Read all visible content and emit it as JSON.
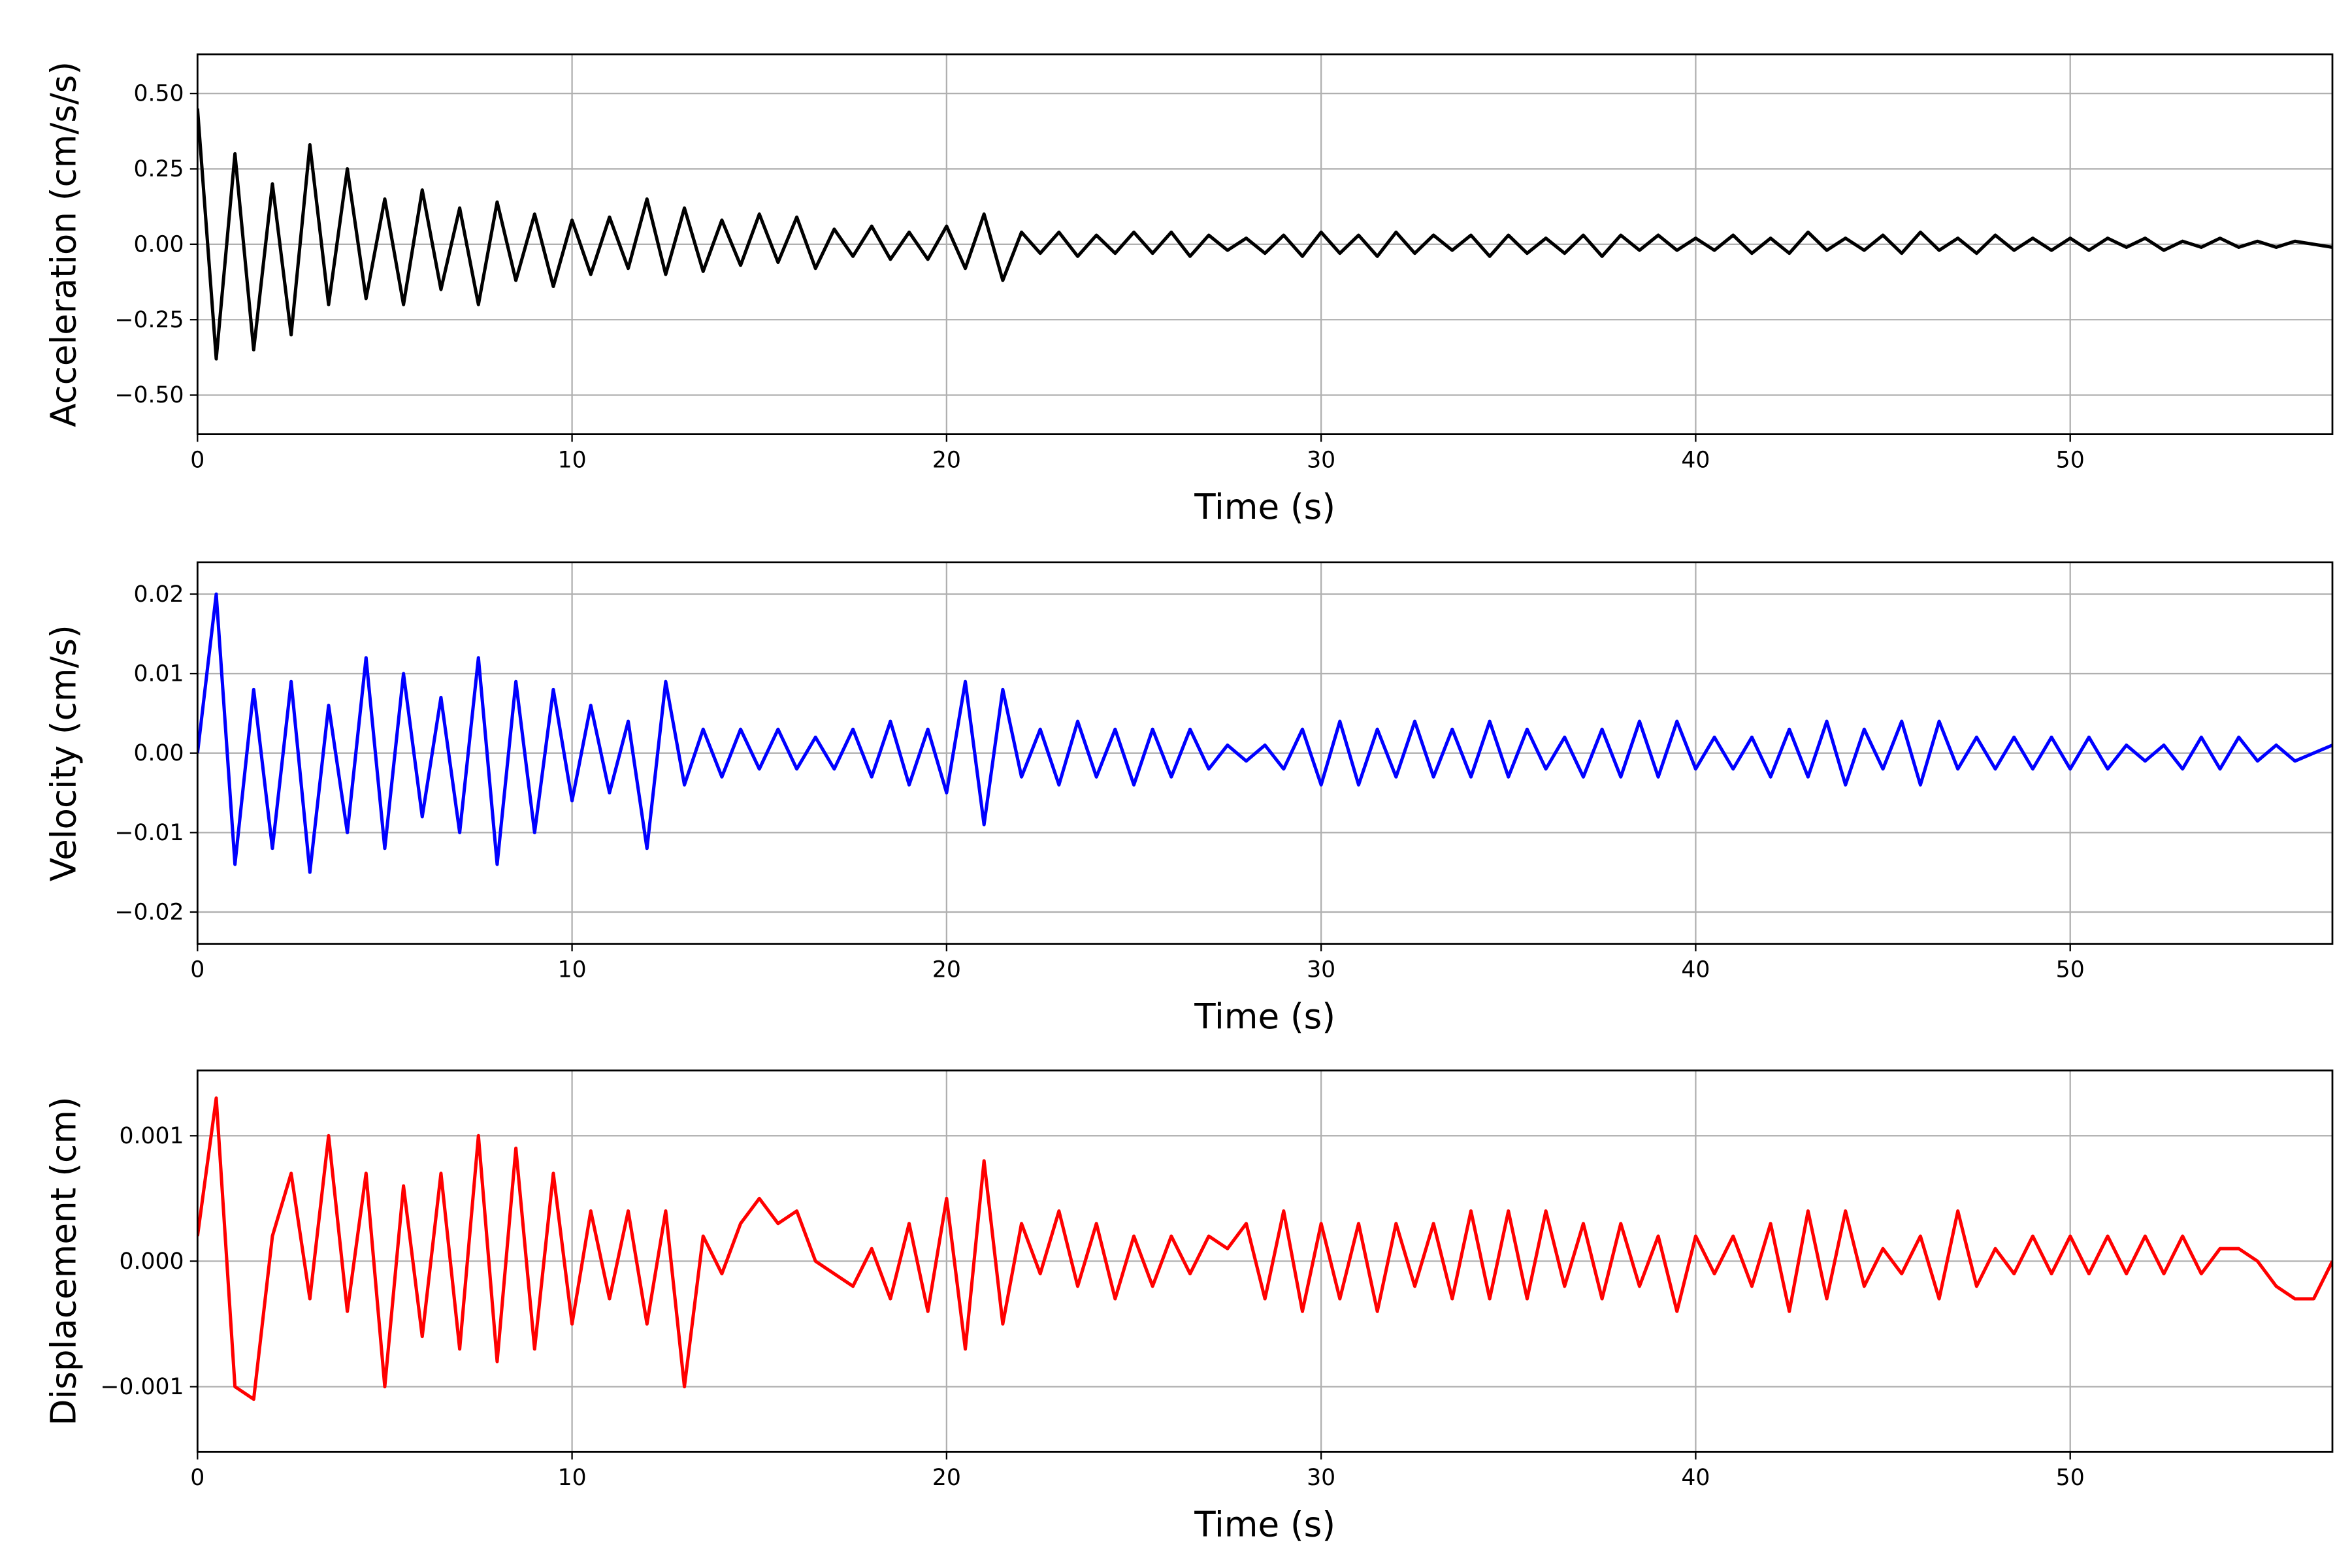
{
  "chart_data": [
    {
      "type": "line",
      "xlabel": "Time (s)",
      "ylabel": "Acceleration (cm/s/s)",
      "color": "#000000",
      "grid": true,
      "xlim": [
        0,
        57
      ],
      "xticks": [
        0,
        10,
        20,
        30,
        40,
        50
      ],
      "ylim": [
        -0.63,
        0.63
      ],
      "yticks": [
        {
          "value": -0.5,
          "label": "−0.50"
        },
        {
          "value": -0.25,
          "label": "−0.25"
        },
        {
          "value": 0,
          "label": "0.00"
        },
        {
          "value": 0.25,
          "label": "0.25"
        },
        {
          "value": 0.5,
          "label": "0.50"
        }
      ],
      "x": [
        0,
        0.5,
        1,
        1.5,
        2,
        2.5,
        3,
        3.5,
        4,
        4.5,
        5,
        5.5,
        6,
        6.5,
        7,
        7.5,
        8,
        8.5,
        9,
        9.5,
        10,
        10.5,
        11,
        11.5,
        12,
        12.5,
        13,
        13.5,
        14,
        14.5,
        15,
        15.5,
        16,
        16.5,
        17,
        17.5,
        18,
        18.5,
        19,
        19.5,
        20,
        20.5,
        21,
        21.5,
        22,
        22.5,
        23,
        23.5,
        24,
        24.5,
        25,
        25.5,
        26,
        26.5,
        27,
        27.5,
        28,
        28.5,
        29,
        29.5,
        30,
        30.5,
        31,
        31.5,
        32,
        32.5,
        33,
        33.5,
        34,
        34.5,
        35,
        35.5,
        36,
        36.5,
        37,
        37.5,
        38,
        38.5,
        39,
        39.5,
        40,
        40.5,
        41,
        41.5,
        42,
        42.5,
        43,
        43.5,
        44,
        44.5,
        45,
        45.5,
        46,
        46.5,
        47,
        47.5,
        48,
        48.5,
        49,
        49.5,
        50,
        50.5,
        51,
        51.5,
        52,
        52.5,
        53,
        53.5,
        54,
        54.5,
        55,
        55.5,
        56,
        56.5,
        57
      ],
      "values": [
        0.45,
        -0.38,
        0.3,
        -0.35,
        0.2,
        -0.3,
        0.33,
        -0.2,
        0.25,
        -0.18,
        0.15,
        -0.2,
        0.18,
        -0.15,
        0.12,
        -0.2,
        0.14,
        -0.12,
        0.1,
        -0.14,
        0.08,
        -0.1,
        0.09,
        -0.08,
        0.15,
        -0.1,
        0.12,
        -0.09,
        0.08,
        -0.07,
        0.1,
        -0.06,
        0.09,
        -0.08,
        0.05,
        -0.04,
        0.06,
        -0.05,
        0.04,
        -0.05,
        0.06,
        -0.08,
        0.1,
        -0.12,
        0.04,
        -0.03,
        0.04,
        -0.04,
        0.03,
        -0.03,
        0.04,
        -0.03,
        0.04,
        -0.04,
        0.03,
        -0.02,
        0.02,
        -0.03,
        0.03,
        -0.04,
        0.04,
        -0.03,
        0.03,
        -0.04,
        0.04,
        -0.03,
        0.03,
        -0.02,
        0.03,
        -0.04,
        0.03,
        -0.03,
        0.02,
        -0.03,
        0.03,
        -0.04,
        0.03,
        -0.02,
        0.03,
        -0.02,
        0.02,
        -0.02,
        0.03,
        -0.03,
        0.02,
        -0.03,
        0.04,
        -0.02,
        0.02,
        -0.02,
        0.03,
        -0.03,
        0.04,
        -0.02,
        0.02,
        -0.03,
        0.03,
        -0.02,
        0.02,
        -0.02,
        0.02,
        -0.02,
        0.02,
        -0.01,
        0.02,
        -0.02,
        0.01,
        -0.01,
        0.02,
        -0.01,
        0.01,
        -0.01,
        0.01,
        0.0,
        -0.01
      ]
    },
    {
      "type": "line",
      "xlabel": "Time (s)",
      "ylabel": "Velocity (cm/s)",
      "color": "#0000ff",
      "grid": true,
      "xlim": [
        0,
        57
      ],
      "xticks": [
        0,
        10,
        20,
        30,
        40,
        50
      ],
      "ylim": [
        -0.024,
        0.024
      ],
      "yticks": [
        {
          "value": -0.02,
          "label": "−0.02"
        },
        {
          "value": -0.01,
          "label": "−0.01"
        },
        {
          "value": 0,
          "label": "0.00"
        },
        0.01,
        0.02
      ],
      "x": [
        0,
        0.5,
        1,
        1.5,
        2,
        2.5,
        3,
        3.5,
        4,
        4.5,
        5,
        5.5,
        6,
        6.5,
        7,
        7.5,
        8,
        8.5,
        9,
        9.5,
        10,
        10.5,
        11,
        11.5,
        12,
        12.5,
        13,
        13.5,
        14,
        14.5,
        15,
        15.5,
        16,
        16.5,
        17,
        17.5,
        18,
        18.5,
        19,
        19.5,
        20,
        20.5,
        21,
        21.5,
        22,
        22.5,
        23,
        23.5,
        24,
        24.5,
        25,
        25.5,
        26,
        26.5,
        27,
        27.5,
        28,
        28.5,
        29,
        29.5,
        30,
        30.5,
        31,
        31.5,
        32,
        32.5,
        33,
        33.5,
        34,
        34.5,
        35,
        35.5,
        36,
        36.5,
        37,
        37.5,
        38,
        38.5,
        39,
        39.5,
        40,
        40.5,
        41,
        41.5,
        42,
        42.5,
        43,
        43.5,
        44,
        44.5,
        45,
        45.5,
        46,
        46.5,
        47,
        47.5,
        48,
        48.5,
        49,
        49.5,
        50,
        50.5,
        51,
        51.5,
        52,
        52.5,
        53,
        53.5,
        54,
        54.5,
        55,
        55.5,
        56,
        56.5,
        57
      ],
      "values": [
        0.0,
        0.02,
        -0.014,
        0.008,
        -0.012,
        0.009,
        -0.015,
        0.006,
        -0.01,
        0.012,
        -0.012,
        0.01,
        -0.008,
        0.007,
        -0.01,
        0.012,
        -0.014,
        0.009,
        -0.01,
        0.008,
        -0.006,
        0.006,
        -0.005,
        0.004,
        -0.012,
        0.009,
        -0.004,
        0.003,
        -0.003,
        0.003,
        -0.002,
        0.003,
        -0.002,
        0.002,
        -0.002,
        0.003,
        -0.003,
        0.004,
        -0.004,
        0.003,
        -0.005,
        0.009,
        -0.009,
        0.008,
        -0.003,
        0.003,
        -0.004,
        0.004,
        -0.003,
        0.003,
        -0.004,
        0.003,
        -0.003,
        0.003,
        -0.002,
        0.001,
        -0.001,
        0.001,
        -0.002,
        0.003,
        -0.004,
        0.004,
        -0.004,
        0.003,
        -0.003,
        0.004,
        -0.003,
        0.003,
        -0.003,
        0.004,
        -0.003,
        0.003,
        -0.002,
        0.002,
        -0.003,
        0.003,
        -0.003,
        0.004,
        -0.003,
        0.004,
        -0.002,
        0.002,
        -0.002,
        0.002,
        -0.003,
        0.003,
        -0.003,
        0.004,
        -0.004,
        0.003,
        -0.002,
        0.004,
        -0.004,
        0.004,
        -0.002,
        0.002,
        -0.002,
        0.002,
        -0.002,
        0.002,
        -0.002,
        0.002,
        -0.002,
        0.001,
        -0.001,
        0.001,
        -0.002,
        0.002,
        -0.002,
        0.002,
        -0.001,
        0.001,
        -0.001,
        0.0,
        0.001
      ]
    },
    {
      "type": "line",
      "xlabel": "Time (s)",
      "ylabel": "Displacement (cm)",
      "color": "#ff0000",
      "grid": true,
      "xlim": [
        0,
        57
      ],
      "xticks": [
        0,
        10,
        20,
        30,
        40,
        50
      ],
      "ylim": [
        -0.00152,
        0.00152
      ],
      "yticks": [
        {
          "value": -0.001,
          "label": "−0.001"
        },
        {
          "value": 0,
          "label": "0.000"
        },
        0.001
      ],
      "x": [
        0,
        0.5,
        1,
        1.5,
        2,
        2.5,
        3,
        3.5,
        4,
        4.5,
        5,
        5.5,
        6,
        6.5,
        7,
        7.5,
        8,
        8.5,
        9,
        9.5,
        10,
        10.5,
        11,
        11.5,
        12,
        12.5,
        13,
        13.5,
        14,
        14.5,
        15,
        15.5,
        16,
        16.5,
        17,
        17.5,
        18,
        18.5,
        19,
        19.5,
        20,
        20.5,
        21,
        21.5,
        22,
        22.5,
        23,
        23.5,
        24,
        24.5,
        25,
        25.5,
        26,
        26.5,
        27,
        27.5,
        28,
        28.5,
        29,
        29.5,
        30,
        30.5,
        31,
        31.5,
        32,
        32.5,
        33,
        33.5,
        34,
        34.5,
        35,
        35.5,
        36,
        36.5,
        37,
        37.5,
        38,
        38.5,
        39,
        39.5,
        40,
        40.5,
        41,
        41.5,
        42,
        42.5,
        43,
        43.5,
        44,
        44.5,
        45,
        45.5,
        46,
        46.5,
        47,
        47.5,
        48,
        48.5,
        49,
        49.5,
        50,
        50.5,
        51,
        51.5,
        52,
        52.5,
        53,
        53.5,
        54,
        54.5,
        55,
        55.5,
        56,
        56.5,
        57
      ],
      "values": [
        0.0002,
        0.0013,
        -0.001,
        -0.0011,
        0.0002,
        0.0007,
        -0.0003,
        0.001,
        -0.0004,
        0.0007,
        -0.001,
        0.0006,
        -0.0006,
        0.0007,
        -0.0007,
        0.001,
        -0.0008,
        0.0009,
        -0.0007,
        0.0007,
        -0.0005,
        0.0004,
        -0.0003,
        0.0004,
        -0.0005,
        0.0004,
        -0.001,
        0.0002,
        -0.0001,
        0.0003,
        0.0005,
        0.0003,
        0.0004,
        0.0,
        -0.0001,
        -0.0002,
        0.0001,
        -0.0003,
        0.0003,
        -0.0004,
        0.0005,
        -0.0007,
        0.0008,
        -0.0005,
        0.0003,
        -0.0001,
        0.0004,
        -0.0002,
        0.0003,
        -0.0003,
        0.0002,
        -0.0002,
        0.0002,
        -0.0001,
        0.0002,
        0.0001,
        0.0003,
        -0.0003,
        0.0004,
        -0.0004,
        0.0003,
        -0.0003,
        0.0003,
        -0.0004,
        0.0003,
        -0.0002,
        0.0003,
        -0.0003,
        0.0004,
        -0.0003,
        0.0004,
        -0.0003,
        0.0004,
        -0.0002,
        0.0003,
        -0.0003,
        0.0003,
        -0.0002,
        0.0002,
        -0.0004,
        0.0002,
        -0.0001,
        0.0002,
        -0.0002,
        0.0003,
        -0.0004,
        0.0004,
        -0.0003,
        0.0004,
        -0.0002,
        0.0001,
        -0.0001,
        0.0002,
        -0.0003,
        0.0004,
        -0.0002,
        0.0001,
        -0.0001,
        0.0002,
        -0.0001,
        0.0002,
        -0.0001,
        0.0002,
        -0.0001,
        0.0002,
        -0.0001,
        0.0002,
        -0.0001,
        0.0001,
        0.0001,
        0.0,
        -0.0002,
        -0.0003,
        -0.0003,
        0.0
      ]
    }
  ]
}
